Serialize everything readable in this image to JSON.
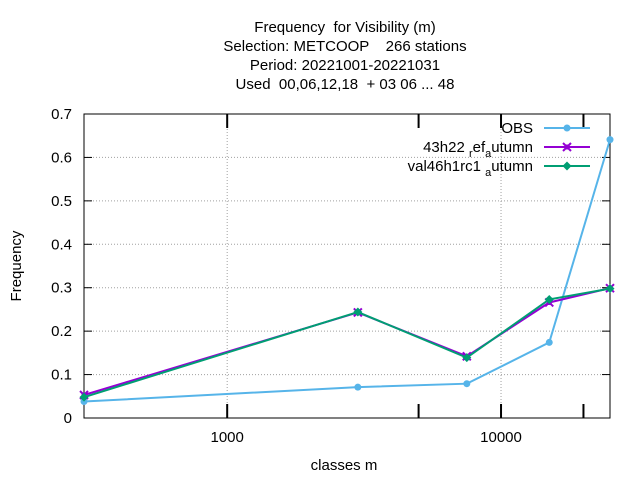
{
  "chart_data": {
    "type": "line",
    "title_lines": [
      "Frequency  for Visibility (m)",
      "Selection: METCOOP    266 stations",
      "Period: 20221001-20221031",
      "Used  00,06,12,18  + 03 06 ... 48"
    ],
    "xlabel": "classes m",
    "ylabel": "Frequency",
    "x_scale": "log",
    "xlim": [
      300,
      25000
    ],
    "ylim": [
      0,
      0.7
    ],
    "x_ticks": [
      {
        "value": 1000,
        "label": "1000"
      },
      {
        "value": 10000,
        "label": "10000"
      }
    ],
    "x_minor_ticks": [
      5000,
      20000
    ],
    "y_ticks": [
      {
        "value": 0,
        "label": "0"
      },
      {
        "value": 0.1,
        "label": "0.1"
      },
      {
        "value": 0.2,
        "label": "0.2"
      },
      {
        "value": 0.3,
        "label": "0.3"
      },
      {
        "value": 0.4,
        "label": "0.4"
      },
      {
        "value": 0.5,
        "label": "0.5"
      },
      {
        "value": 0.6,
        "label": "0.6"
      },
      {
        "value": 0.7,
        "label": "0.7"
      }
    ],
    "grid": true,
    "legend_position": "top-right",
    "x": [
      300,
      3000,
      7500,
      15000,
      25000
    ],
    "series": [
      {
        "name": "OBS",
        "color": "#56b4e9",
        "marker": "circle",
        "values": [
          0.038,
          0.071,
          0.079,
          0.174,
          0.641
        ]
      },
      {
        "name": "43h22 ref autumn",
        "name_main": "43h22 ",
        "name_sub1": "r",
        "name_mid": "ef",
        "name_sub2": "a",
        "name_end": "utumn",
        "color": "#9400d3",
        "marker": "cross",
        "values": [
          0.053,
          0.243,
          0.142,
          0.266,
          0.299
        ]
      },
      {
        "name": "val46h1rc1 autumn",
        "name_main": "val46h1rc1 ",
        "name_sub1": "",
        "name_mid": "",
        "name_sub2": "a",
        "name_end": "utumn",
        "color": "#009e73",
        "marker": "diamond",
        "values": [
          0.048,
          0.244,
          0.139,
          0.273,
          0.298
        ]
      }
    ]
  }
}
